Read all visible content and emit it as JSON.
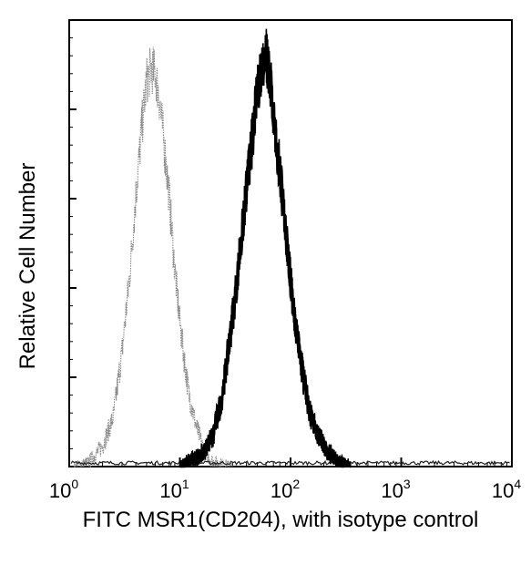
{
  "chart_data": {
    "type": "area",
    "xlabel": "FITC  MSR1(CD204),  with isotype control",
    "ylabel": "Relative Cell Number",
    "x_scale": "log",
    "xlim": [
      1,
      10000
    ],
    "x_ticks": [
      {
        "base": "10",
        "exp": "0"
      },
      {
        "base": "10",
        "exp": "1"
      },
      {
        "base": "10",
        "exp": "2"
      },
      {
        "base": "10",
        "exp": "3"
      },
      {
        "base": "10",
        "exp": "4"
      }
    ],
    "ylim": [
      0,
      1
    ],
    "y_tick_labels": "none",
    "grid": false,
    "legend": "none",
    "series": [
      {
        "style": "dotted-gray",
        "color": "#8a8a8a",
        "x": [
          1.1,
          1.5,
          2,
          2.5,
          3,
          3.5,
          4,
          4.5,
          5,
          5.5,
          6,
          6.5,
          7,
          8,
          9,
          10,
          11,
          12,
          14,
          16,
          18,
          20,
          25,
          30
        ],
        "y": [
          0.0,
          0.01,
          0.05,
          0.12,
          0.28,
          0.46,
          0.66,
          0.82,
          0.94,
          0.97,
          0.96,
          0.9,
          0.82,
          0.66,
          0.48,
          0.35,
          0.26,
          0.18,
          0.1,
          0.05,
          0.025,
          0.012,
          0.004,
          0.0
        ]
      },
      {
        "style": "solid-black",
        "color": "#000000",
        "x": [
          10,
          14,
          17,
          20,
          24,
          28,
          32,
          36,
          40,
          45,
          50,
          55,
          60,
          65,
          70,
          80,
          90,
          100,
          115,
          130,
          150,
          180,
          220,
          280,
          350
        ],
        "y": [
          0.0,
          0.02,
          0.04,
          0.08,
          0.17,
          0.3,
          0.43,
          0.55,
          0.68,
          0.8,
          0.91,
          0.98,
          1.0,
          0.95,
          0.86,
          0.72,
          0.58,
          0.45,
          0.32,
          0.22,
          0.13,
          0.07,
          0.035,
          0.01,
          0.0
        ]
      }
    ]
  }
}
